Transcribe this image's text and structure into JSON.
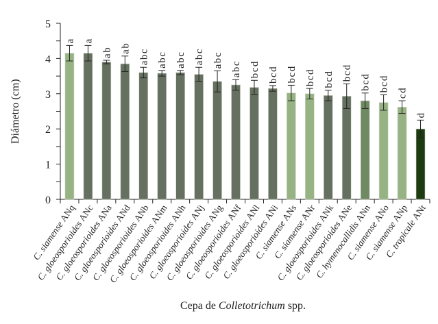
{
  "chart_data": {
    "type": "bar",
    "title": "",
    "xlabel_prefix": "Cepa de ",
    "xlabel_italic": "Colletotrichum",
    "xlabel_suffix": " spp.",
    "ylabel": "Diámetro (cm)",
    "ylim": [
      0,
      5
    ],
    "yticks": [
      0,
      1,
      2,
      3,
      4,
      5
    ],
    "grid": false,
    "legend": null,
    "categories": [
      "C. siamense ANq",
      "C. gloeosporioides ANc",
      "C. gloeosporioides ANa",
      "C. gloeosporioides ANd",
      "C. gloeosporioides ANb",
      "C. gloeosporioides ANm",
      "C. gloeosporioides ANh",
      "C. gloeosporioides ANj",
      "C. gloeosporioides ANg",
      "C. gloeosporioides ANf",
      "C. gloeosporioides ANl",
      "C. gloeosporioides ANi",
      "C. siamense ANs",
      "C. siamense ANr",
      "C. gloeosporioides ANk",
      "C. gloeosporioides ANe",
      "C. hymenocallidis ANn",
      "C. siamense ANo",
      "C. siamense ANp",
      "C. tropicale ANt"
    ],
    "values": [
      4.15,
      4.15,
      3.9,
      3.85,
      3.6,
      3.58,
      3.6,
      3.55,
      3.35,
      3.25,
      3.18,
      3.15,
      3.02,
      3.0,
      2.95,
      2.93,
      2.8,
      2.75,
      2.62,
      2.0
    ],
    "errors": [
      0.22,
      0.22,
      0.05,
      0.22,
      0.15,
      0.08,
      0.06,
      0.2,
      0.3,
      0.15,
      0.2,
      0.08,
      0.22,
      0.15,
      0.15,
      0.35,
      0.22,
      0.22,
      0.18,
      0.25
    ],
    "letters": [
      "a",
      "a",
      "ab",
      "ab",
      "abc",
      "abc",
      "abc",
      "abc",
      "abc",
      "abc",
      "bcd",
      "bcd",
      "bcd",
      "bcd",
      "bcd",
      "bcd",
      "bcd",
      "bcd",
      "cd",
      "d"
    ],
    "bar_colors": [
      "#97b383",
      "#667060",
      "#667060",
      "#667060",
      "#667060",
      "#667060",
      "#667060",
      "#667060",
      "#667060",
      "#667060",
      "#667060",
      "#667060",
      "#97b383",
      "#97b383",
      "#667060",
      "#667060",
      "#6f8a63",
      "#97b383",
      "#97b383",
      "#1e3a10"
    ]
  }
}
